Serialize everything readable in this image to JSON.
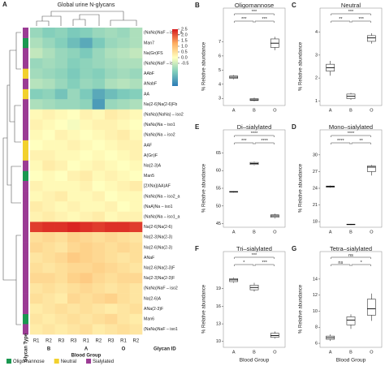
{
  "chart_data": [
    {
      "type": "heatmap",
      "panel": "A",
      "title": "Global urine N-glycans",
      "rows": [
        "(NaNa)NaF – iso2_a",
        "Man7",
        "Na(Gn)FS",
        "(NaNa)NaF – iso2",
        "AAbF",
        "ANabF",
        "AA",
        "Na(2-6)Na(2-6)Fb",
        "(NaNa)(NaNa) – iso2",
        "(NaNa)Na – iso1",
        "(NaNa)Na – iso2",
        "AAF",
        "A(Gn)F",
        "Na(2-3)A",
        "Man5",
        "[2XNa](AA)AF",
        "(NaNa)Na – iso2_a",
        "(NaA)Na – iso1",
        "(NaNa)Na – iso1_a",
        "Na(2-6)Na(2-6)",
        "Na(2-3)Na(2-3)",
        "Na(2-6)Na(2-3)",
        "ANaF",
        "Na(2-6)Na(2-3)F",
        "Na(2-3)Na(2-3)F",
        "(NaNa)NaF – iso2",
        "Na(2-6)A",
        "ANa(2-3)F",
        "Man6",
        "(NaNa)NaF – iso1"
      ],
      "columns": [
        "R1",
        "R2",
        "R3",
        "R3",
        "R1",
        "R2",
        "R3",
        "R1",
        "R2"
      ],
      "column_groups": [
        "B",
        "A",
        "O"
      ],
      "column_group_label": "Blood Group",
      "column_id_label": "Glycan ID",
      "row_type_label": "Glycan Type",
      "values": [
        [
          -1.0,
          -1.2,
          -1.1,
          -1.3,
          -1.2,
          -1.0,
          -0.9,
          -1.0,
          -0.8
        ],
        [
          -0.8,
          -1.0,
          -1.2,
          -1.5,
          -1.8,
          -1.3,
          -1.0,
          -0.9,
          -0.8
        ],
        [
          -0.6,
          -0.8,
          -1.0,
          -1.1,
          -1.3,
          -1.0,
          -0.8,
          -0.7,
          -0.6
        ],
        [
          -1.0,
          -0.9,
          -1.0,
          -1.2,
          -1.1,
          -1.0,
          -0.9,
          -0.8,
          -0.8
        ],
        [
          -0.9,
          -1.0,
          -1.1,
          -1.3,
          -1.1,
          -1.2,
          -1.0,
          -0.9,
          -1.0
        ],
        [
          -0.7,
          -0.8,
          -1.0,
          -1.2,
          -1.0,
          -1.1,
          -0.8,
          -0.7,
          -0.8
        ],
        [
          -1.2,
          -1.1,
          -1.4,
          -1.0,
          -1.3,
          -1.8,
          -1.5,
          -1.3,
          -1.2
        ],
        [
          -0.8,
          -0.9,
          -1.0,
          -1.0,
          -1.1,
          -2.0,
          -1.0,
          -0.9,
          -0.8
        ],
        [
          0.1,
          0.2,
          0.1,
          0.0,
          0.2,
          0.1,
          0.3,
          0.2,
          0.1
        ],
        [
          0.2,
          0.1,
          0.0,
          -0.1,
          0.1,
          0.2,
          0.2,
          0.1,
          0.0
        ],
        [
          0.1,
          0.0,
          0.2,
          0.1,
          0.0,
          0.1,
          0.2,
          0.3,
          0.1
        ],
        [
          0.0,
          0.1,
          0.1,
          0.2,
          0.1,
          0.0,
          0.1,
          0.2,
          0.2
        ],
        [
          0.2,
          0.2,
          0.1,
          0.1,
          0.0,
          0.1,
          0.0,
          0.1,
          0.2
        ],
        [
          0.1,
          0.3,
          0.2,
          0.0,
          0.1,
          0.2,
          0.1,
          0.0,
          0.1
        ],
        [
          0.0,
          0.1,
          0.0,
          0.2,
          0.3,
          0.1,
          0.2,
          0.1,
          0.0
        ],
        [
          0.2,
          0.1,
          0.1,
          0.1,
          0.2,
          0.0,
          0.1,
          0.2,
          0.3
        ],
        [
          0.1,
          0.2,
          0.3,
          0.1,
          0.1,
          0.2,
          0.0,
          0.1,
          0.1
        ],
        [
          0.3,
          0.2,
          0.1,
          0.2,
          0.1,
          0.1,
          0.2,
          0.0,
          0.1
        ],
        [
          0.2,
          0.3,
          0.2,
          0.1,
          0.2,
          0.3,
          0.1,
          0.2,
          0.2
        ],
        [
          2.2,
          2.3,
          2.3,
          2.4,
          2.3,
          2.2,
          2.3,
          2.3,
          2.2
        ],
        [
          0.5,
          0.6,
          0.5,
          0.7,
          0.6,
          0.5,
          0.6,
          0.5,
          0.4
        ],
        [
          0.6,
          0.5,
          0.4,
          0.6,
          0.7,
          0.6,
          0.5,
          0.6,
          0.5
        ],
        [
          0.4,
          0.5,
          0.6,
          0.8,
          0.7,
          0.6,
          0.5,
          0.4,
          0.5
        ],
        [
          0.5,
          0.4,
          0.5,
          0.6,
          0.6,
          0.7,
          0.6,
          0.5,
          0.4
        ],
        [
          0.6,
          0.6,
          0.5,
          0.7,
          0.8,
          0.6,
          0.5,
          0.6,
          0.6
        ],
        [
          0.4,
          0.5,
          0.4,
          0.5,
          0.6,
          0.5,
          0.4,
          0.5,
          0.4
        ],
        [
          0.5,
          0.4,
          0.3,
          0.6,
          0.5,
          0.6,
          0.7,
          0.5,
          0.4
        ],
        [
          0.3,
          0.4,
          0.5,
          0.4,
          0.5,
          0.4,
          0.3,
          0.4,
          0.5
        ],
        [
          0.4,
          0.3,
          0.4,
          0.5,
          0.4,
          0.5,
          0.6,
          0.4,
          0.3
        ],
        [
          0.3,
          0.4,
          0.3,
          0.4,
          0.5,
          0.3,
          0.4,
          0.5,
          0.4
        ]
      ],
      "zlim": [
        -2.5,
        2.5
      ],
      "zticks": [
        {
          "value": 2.5,
          "label": "2.5"
        },
        {
          "value": 2,
          "label": "2.0"
        },
        {
          "value": 1.5,
          "label": "1.5"
        },
        {
          "value": 1,
          "label": "1.0"
        },
        {
          "value": 0.5,
          "label": "0.5"
        },
        {
          "value": 0,
          "label": "0.0"
        },
        {
          "value": -0.5,
          "label": "-0.5"
        }
      ],
      "glycan_types": [
        {
          "name": "Oligomannose",
          "color": "#1a9850",
          "rows": [
            1,
            14,
            28
          ]
        },
        {
          "name": "Neutral",
          "color": "#f2d12e",
          "rows": [
            4,
            6,
            11,
            12
          ]
        },
        {
          "name": "Sialylated",
          "color": "#9b3b94",
          "rows": [
            0,
            2,
            3,
            5,
            7,
            8,
            9,
            10,
            13,
            15,
            16,
            17,
            18,
            19,
            20,
            21,
            22,
            23,
            24,
            25,
            26,
            27,
            29
          ]
        }
      ]
    },
    {
      "type": "box",
      "panel": "B",
      "title": "Oligomannose",
      "y_label": "% Relative abundance",
      "categories": [
        "A",
        "B",
        "O"
      ],
      "stats": [
        [
          4.35,
          4.42,
          4.5,
          4.58,
          4.65
        ],
        [
          2.8,
          2.85,
          2.9,
          2.98,
          3.05
        ],
        [
          6.4,
          6.6,
          6.9,
          7.2,
          7.35
        ]
      ],
      "ylim": [
        2.5,
        8
      ],
      "yticks": [
        3,
        4,
        5,
        6,
        7
      ],
      "significance": [
        "***",
        "***",
        "***"
      ]
    },
    {
      "type": "box",
      "panel": "C",
      "title": "Neutral",
      "y_label": "% Relative abundance",
      "categories": [
        "A",
        "B",
        "O"
      ],
      "stats": [
        [
          2.1,
          2.3,
          2.45,
          2.6,
          2.75
        ],
        [
          1.05,
          1.1,
          1.2,
          1.3,
          1.35
        ],
        [
          3.5,
          3.6,
          3.75,
          3.85,
          3.95
        ]
      ],
      "ylim": [
        0.8,
        4.2
      ],
      "yticks": [
        1,
        2,
        3,
        4
      ],
      "significance": [
        "**",
        "***",
        "***"
      ]
    },
    {
      "type": "box",
      "panel": "E",
      "title": "Di–sialylated",
      "y_label": "% Relative abundance",
      "categories": [
        "A",
        "B",
        "O"
      ],
      "stats": [
        [
          53.8,
          53.9,
          54,
          54.1,
          54.2
        ],
        [
          61.5,
          61.7,
          62,
          62.3,
          62.5
        ],
        [
          46.5,
          46.8,
          47.2,
          47.5,
          47.8
        ]
      ],
      "ylim": [
        44,
        66
      ],
      "yticks": [
        45,
        50,
        55,
        60,
        65
      ],
      "significance": [
        "***",
        "****",
        "****"
      ]
    },
    {
      "type": "box",
      "panel": "D",
      "title": "Mono–sialylated",
      "y_label": "% Relative abundance",
      "categories": [
        "A",
        "B",
        "O"
      ],
      "stats": [
        [
          24.1,
          24.2,
          24.3,
          24.4,
          24.5
        ],
        [
          17.4,
          17.45,
          17.5,
          17.55,
          17.6
        ],
        [
          26.3,
          27,
          27.8,
          28,
          28.2
        ]
      ],
      "ylim": [
        17,
        31
      ],
      "yticks": [
        18,
        21,
        24,
        27,
        30
      ],
      "significance": [
        "****",
        "**",
        "****"
      ]
    },
    {
      "type": "box",
      "panel": "F",
      "title": "Tri–sialylated",
      "y_label": "% Relative abundance",
      "x_label": "Blood Group",
      "categories": [
        "A",
        "B",
        "O"
      ],
      "stats": [
        [
          20,
          20.2,
          20.5,
          20.7,
          20.9
        ],
        [
          18.5,
          18.8,
          19.2,
          19.6,
          20
        ],
        [
          10.5,
          10.7,
          11,
          11.4,
          11.7
        ]
      ],
      "ylim": [
        9,
        22
      ],
      "yticks": [
        10,
        13,
        16,
        19
      ],
      "significance": [
        "*",
        "***",
        "***"
      ]
    },
    {
      "type": "box",
      "panel": "G",
      "title": "Tetra–sialylated",
      "y_label": "% Relative abundance",
      "x_label": "Blood Group",
      "categories": [
        "A",
        "B",
        "O"
      ],
      "stats": [
        [
          6.3,
          6.5,
          6.7,
          6.9,
          7.1
        ],
        [
          7.8,
          8.3,
          8.9,
          9.3,
          9.6
        ],
        [
          8.8,
          9.5,
          10.3,
          11.5,
          12.2
        ]
      ],
      "ylim": [
        5.5,
        15
      ],
      "yticks": [
        6,
        8,
        10,
        12,
        14
      ],
      "significance": [
        "ns",
        "*",
        "ns"
      ]
    }
  ]
}
